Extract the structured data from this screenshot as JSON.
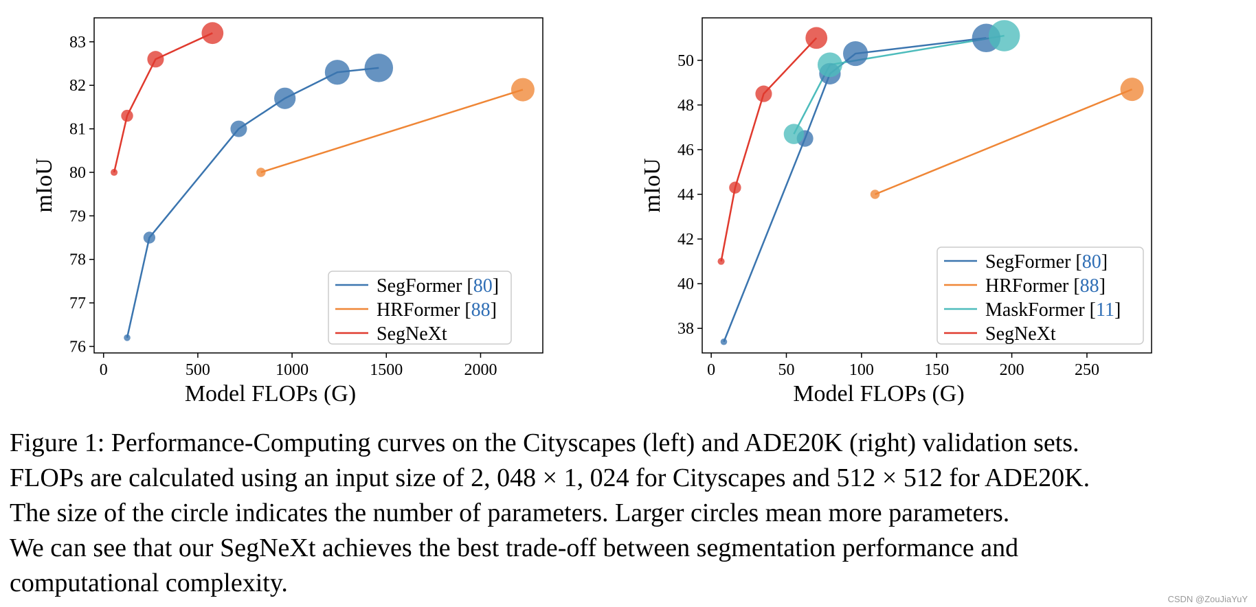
{
  "chart_data": [
    {
      "type": "scatter",
      "title": "",
      "xlabel": "Model FLOPs (G)",
      "ylabel": "mIoU",
      "xlim": [
        -50,
        2330
      ],
      "ylim": [
        75.85,
        83.55
      ],
      "xticks": [
        0,
        500,
        1000,
        1500,
        2000
      ],
      "yticks": [
        76,
        77,
        78,
        79,
        80,
        81,
        82,
        83
      ],
      "grid": false,
      "legend_position": "bottom-right",
      "series": [
        {
          "name": "SegFormer [80]",
          "label": "SegFormer [",
          "ref": "80",
          "color": "#3b75af",
          "x": [
            125,
            243,
            717,
            962,
            1240,
            1460
          ],
          "y": [
            76.2,
            78.5,
            81.0,
            81.7,
            82.3,
            82.4
          ],
          "params": [
            3.8,
            13.7,
            27.5,
            47.3,
            64.1,
            84.7
          ]
        },
        {
          "name": "HRFormer [88]",
          "label": "HRFormer [",
          "ref": "88",
          "color": "#ef8636",
          "x": [
            835,
            2224
          ],
          "y": [
            80.0,
            81.9
          ],
          "params": [
            8.1,
            56.2
          ]
        },
        {
          "name": "SegNeXt",
          "label": "SegNeXt",
          "ref": "",
          "color": "#e03a2e",
          "x": [
            56,
            125,
            276,
            578
          ],
          "y": [
            80.0,
            81.3,
            82.6,
            83.2
          ],
          "params": [
            4.3,
            13.9,
            27.6,
            48.9
          ]
        }
      ]
    },
    {
      "type": "scatter",
      "title": "",
      "xlabel": "Model FLOPs (G)",
      "ylabel": "mIoU",
      "xlim": [
        -6,
        293
      ],
      "ylim": [
        36.9,
        51.9
      ],
      "xticks": [
        0,
        50,
        100,
        150,
        200,
        250
      ],
      "yticks": [
        38,
        40,
        42,
        44,
        46,
        48,
        50
      ],
      "grid": false,
      "legend_position": "bottom-right",
      "series": [
        {
          "name": "SegFormer [80]",
          "label": "SegFormer [",
          "ref": "80",
          "color": "#3b75af",
          "x": [
            8.4,
            62.4,
            79,
            96,
            183
          ],
          "y": [
            37.4,
            46.5,
            49.4,
            50.3,
            51.0
          ],
          "params": [
            3.8,
            27.5,
            47.3,
            64.1,
            84.7
          ]
        },
        {
          "name": "HRFormer [88]",
          "label": "HRFormer [",
          "ref": "88",
          "color": "#ef8636",
          "x": [
            109,
            280
          ],
          "y": [
            44.0,
            48.7
          ],
          "params": [
            8.1,
            56.2
          ]
        },
        {
          "name": "MaskFormer [11]",
          "label": "MaskFormer [",
          "ref": "11",
          "color": "#4dbcbc",
          "x": [
            55,
            79,
            195
          ],
          "y": [
            46.7,
            49.8,
            51.1
          ],
          "params": [
            42,
            63,
            102
          ]
        },
        {
          "name": "SegNeXt",
          "label": "SegNeXt",
          "ref": "",
          "color": "#e03a2e",
          "x": [
            6.6,
            15.9,
            34.9,
            70
          ],
          "y": [
            41.0,
            44.3,
            48.5,
            51.0
          ],
          "params": [
            4.3,
            13.9,
            27.6,
            48.9
          ]
        }
      ]
    }
  ],
  "caption": {
    "lines": [
      "Figure 1: Performance-Computing curves on the Cityscapes (left) and ADE20K (right) validation sets.",
      "FLOPs are calculated using an input size of 2, 048 × 1, 024 for Cityscapes and 512 × 512 for ADE20K.",
      "The size of the circle indicates the number of parameters. Larger circles mean more parameters.",
      "We can see that our SegNeXt achieves the best trade-off between segmentation performance and",
      "computational complexity."
    ]
  },
  "watermark": "CSDN @ZouJiaYuY",
  "ref_color": "#2f6eb5"
}
